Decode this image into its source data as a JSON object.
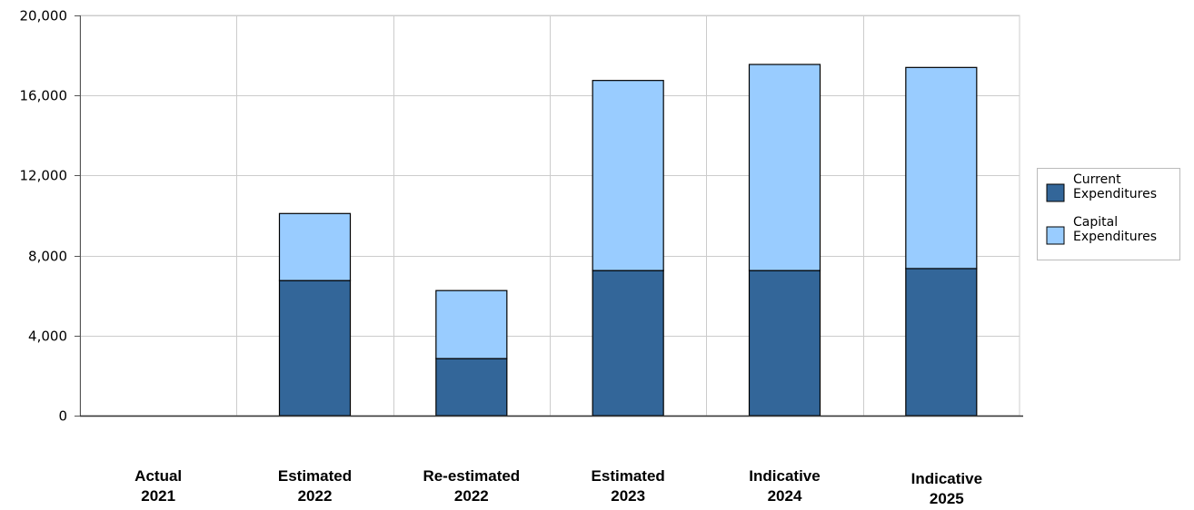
{
  "chart_data": {
    "type": "bar",
    "stacked": true,
    "categories": [
      [
        "Actual",
        "2021"
      ],
      [
        "Estimated",
        "2022"
      ],
      [
        "Re-estimated",
        "2022"
      ],
      [
        "Estimated",
        "2023"
      ],
      [
        "Indicative",
        "2024"
      ],
      [
        "Indicative",
        "2025"
      ]
    ],
    "series": [
      {
        "name": [
          "Current",
          "Expenditures"
        ],
        "color": "#336699",
        "values": [
          0,
          6750,
          2850,
          7250,
          7250,
          7350
        ]
      },
      {
        "name": [
          "Capital",
          "Expenditures"
        ],
        "color": "#99ccff",
        "values": [
          0,
          3350,
          3400,
          9500,
          10300,
          10050
        ]
      }
    ],
    "yticks": [
      "0",
      "4,000",
      "8,000",
      "12,000",
      "16,000",
      "20,000"
    ],
    "ylim": [
      0,
      20000
    ],
    "grid": true,
    "legend_position": "right"
  }
}
